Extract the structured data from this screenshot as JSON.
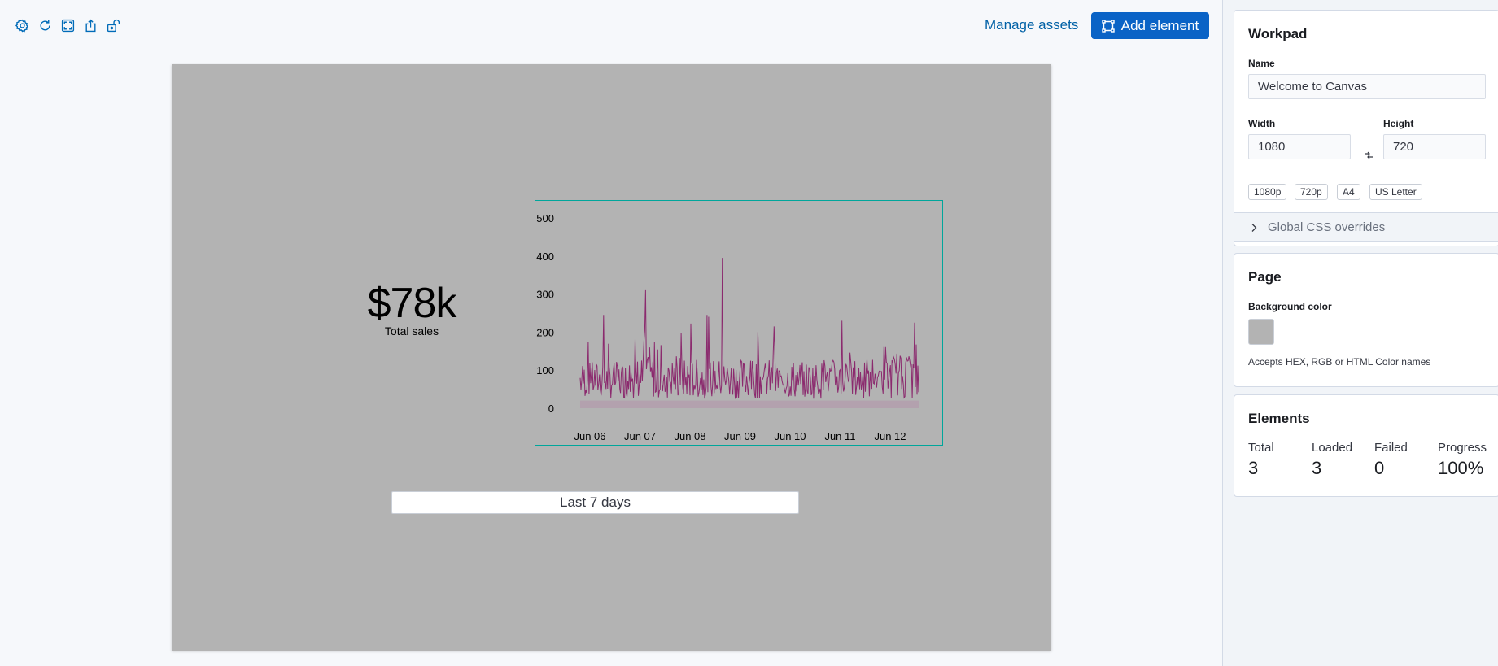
{
  "toolbar": {
    "icons": [
      "gear-icon",
      "refresh-icon",
      "fullscreen-icon",
      "share-icon",
      "unlock-icon"
    ],
    "manage_assets": "Manage assets",
    "add_element": "Add element"
  },
  "canvas": {
    "background_color": "#b3b3b3",
    "metric": {
      "value": "$78k",
      "label": "Total sales"
    },
    "time_filter": "Last 7 days"
  },
  "chart_data": {
    "type": "line",
    "x_ticks": [
      "Jun 06",
      "Jun 07",
      "Jun 08",
      "Jun 09",
      "Jun 10",
      "Jun 11",
      "Jun 12"
    ],
    "y_ticks": [
      "0",
      "100",
      "200",
      "300",
      "400",
      "500"
    ],
    "ylim": [
      0,
      500
    ],
    "series_color": "#8b2a6e",
    "baseline_band": [
      0,
      20
    ],
    "daily_peaks": [
      245,
      310,
      395,
      200,
      215,
      230,
      225
    ],
    "daily_typical": [
      75,
      85,
      80,
      80,
      75,
      80,
      90
    ],
    "grid": false,
    "legend": "none"
  },
  "sidebar": {
    "workpad": {
      "title": "Workpad",
      "name_label": "Name",
      "name_value": "Welcome to Canvas",
      "width_label": "Width",
      "width_value": "1080",
      "height_label": "Height",
      "height_value": "720",
      "presets": [
        "1080p",
        "720p",
        "A4",
        "US Letter"
      ],
      "css_overrides": "Global CSS overrides"
    },
    "page": {
      "title": "Page",
      "bg_label": "Background color",
      "hint": "Accepts HEX, RGB or HTML Color names"
    },
    "elements": {
      "title": "Elements",
      "stats": [
        {
          "label": "Total",
          "value": "3"
        },
        {
          "label": "Loaded",
          "value": "3"
        },
        {
          "label": "Failed",
          "value": "0"
        },
        {
          "label": "Progress",
          "value": "100%"
        }
      ]
    }
  },
  "colors": {
    "accent": "#0a63c6",
    "link": "#0061a6",
    "chart_border": "#00a69b"
  }
}
